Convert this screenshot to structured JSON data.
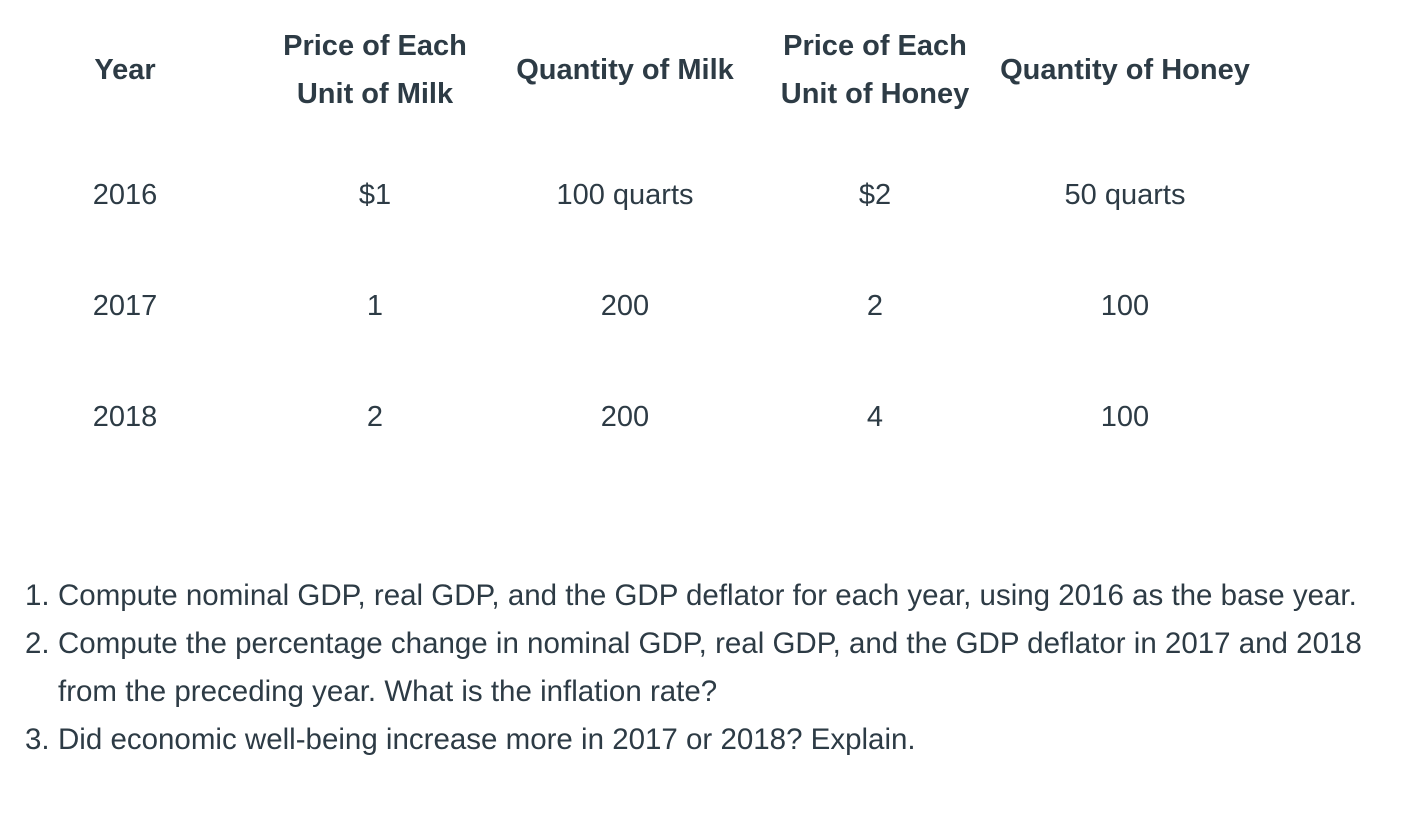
{
  "page": {
    "background": "#ffffff",
    "text_color": "#2d3b45"
  },
  "table": {
    "headers": [
      [
        "Year"
      ],
      [
        "Price of Each",
        "Unit of Milk"
      ],
      [
        "Quantity of Milk"
      ],
      [
        "Price of Each",
        "Unit of Honey"
      ],
      [
        "Quantity of Honey"
      ]
    ],
    "rows": [
      [
        "2016",
        "$1",
        "100 quarts",
        "$2",
        "50 quarts"
      ],
      [
        "2017",
        "1",
        "200",
        "2",
        "100"
      ],
      [
        "2018",
        "2",
        "200",
        "4",
        "100"
      ]
    ]
  },
  "questions": [
    {
      "number": "1.",
      "text": "Compute nominal GDP, real GDP, and the GDP deflator for each year, using 2016 as the base year."
    },
    {
      "number": "2.",
      "text": "Compute the percentage change in nominal GDP, real GDP, and the GDP deflator in 2017 and 2018 from the preceding year. What is the inflation rate?"
    },
    {
      "number": "3.",
      "text": "Did economic well-being increase more in 2017 or 2018? Explain."
    }
  ]
}
